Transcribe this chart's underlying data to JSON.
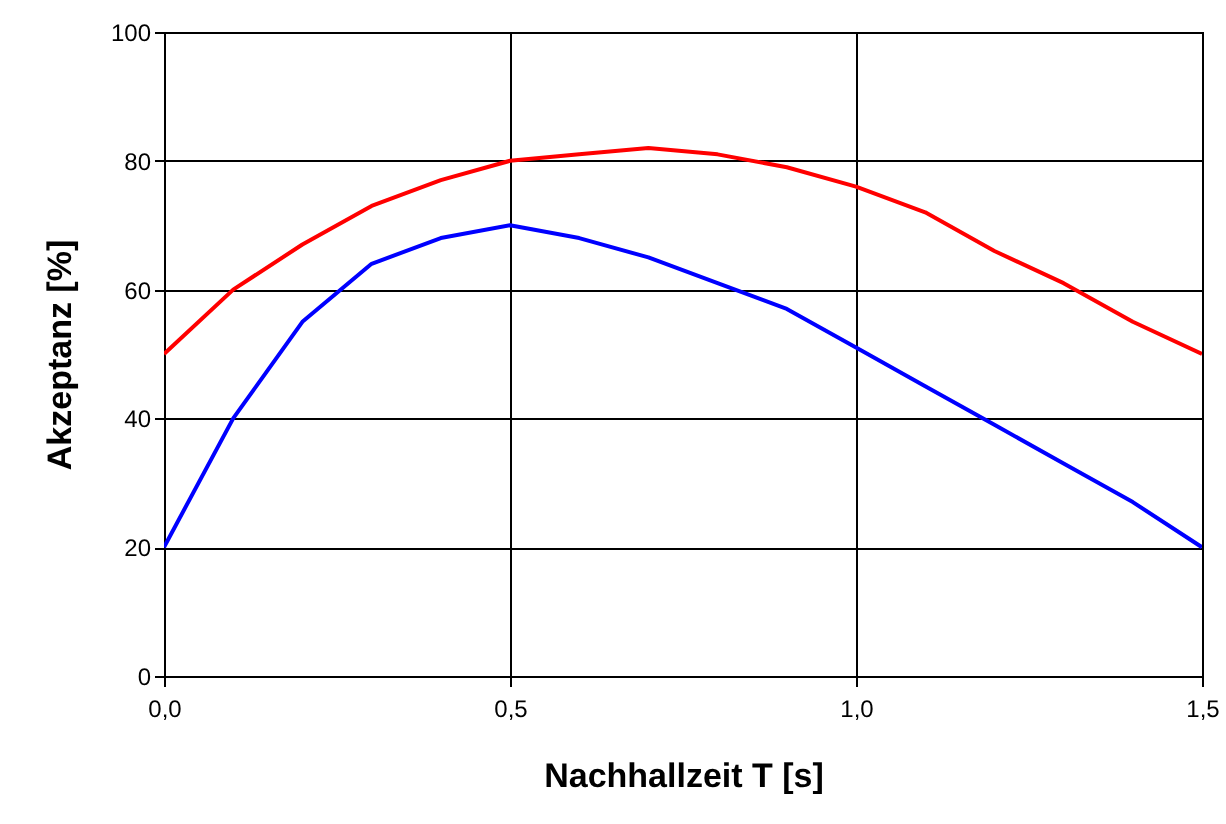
{
  "chart_data": {
    "type": "line",
    "xlabel": "Nachhallzeit T [s]",
    "ylabel": "Akzeptanz [%]",
    "x": [
      0,
      0.1,
      0.2,
      0.3,
      0.4,
      0.5,
      0.6,
      0.7,
      0.8,
      0.9,
      1.0,
      1.1,
      1.2,
      1.3,
      1.4,
      1.5
    ],
    "series": [
      {
        "color": "#ff0000",
        "values": [
          50,
          60,
          67,
          73,
          77,
          80,
          81,
          82,
          81,
          79,
          76,
          72,
          66,
          61,
          55,
          50
        ]
      },
      {
        "color": "#0000ff",
        "values": [
          20,
          40,
          55,
          64,
          68,
          70,
          68,
          65,
          61,
          57,
          51,
          45,
          39,
          33,
          27,
          20
        ]
      }
    ],
    "xlim": [
      0,
      1.5
    ],
    "xticks": [
      {
        "value": 0,
        "label": "0,0"
      },
      {
        "value": 0.5,
        "label": "0,5"
      },
      {
        "value": 1,
        "label": "1,0"
      },
      {
        "value": 1.5,
        "label": "1,5"
      }
    ],
    "ylim": [
      0,
      100
    ],
    "yticks": [
      0,
      20,
      40,
      60,
      80,
      100
    ],
    "grid": true,
    "marker": "none",
    "line_style": "solid"
  }
}
